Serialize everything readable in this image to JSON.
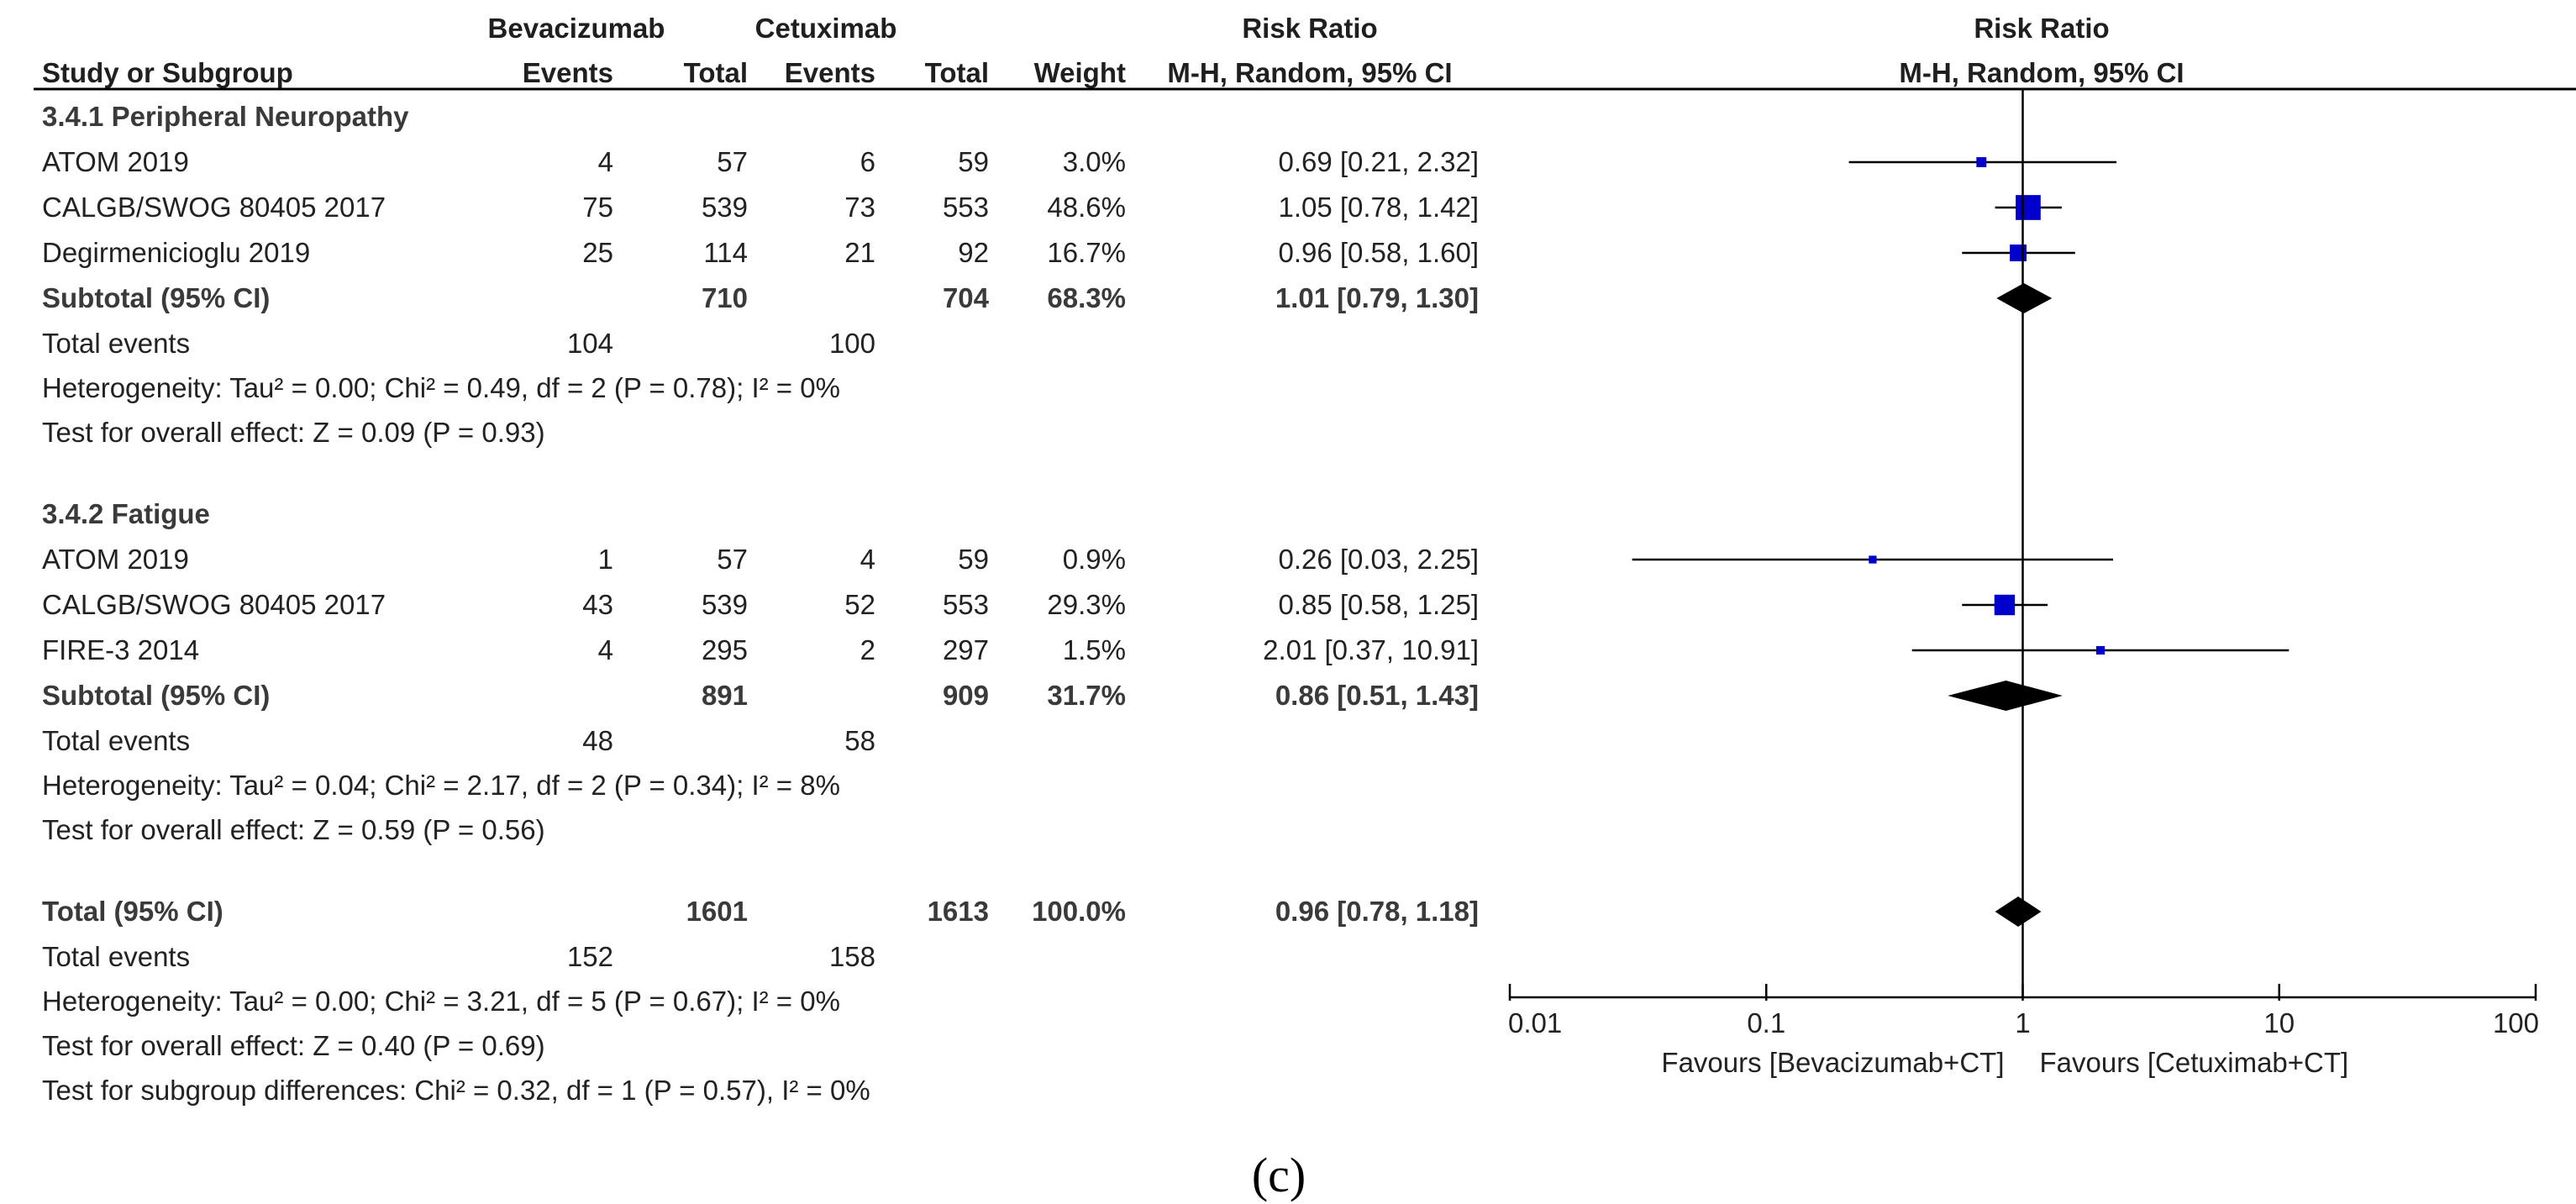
{
  "header": {
    "group1": "Bevacizumab",
    "group2": "Cetuximab",
    "rr_title": "Risk Ratio",
    "plot_title": "Risk Ratio",
    "col_study": "Study or Subgroup",
    "col_events1": "Events",
    "col_total1": "Total",
    "col_events2": "Events",
    "col_total2": "Total",
    "col_weight": "Weight",
    "col_method": "M-H, Random, 95% CI",
    "plot_method": "M-H, Random, 95% CI"
  },
  "colors": {
    "marker": "#0000cc",
    "diamond": "#000000"
  },
  "chart_data": {
    "type": "forest",
    "x_scale": "log",
    "xlim": [
      0.01,
      100
    ],
    "ticks": [
      {
        "value": 0.01,
        "label": "0.01"
      },
      {
        "value": 0.1,
        "label": "0.1"
      },
      {
        "value": 1,
        "label": "1"
      },
      {
        "value": 10,
        "label": "10"
      },
      {
        "value": 100,
        "label": "100"
      }
    ],
    "null_line": 1,
    "favours_left": "Favours [Bevacizumab+CT]",
    "favours_right": "Favours [Cetuximab+CT]",
    "subgroups": [
      {
        "title": "3.4.1 Peripheral Neuropathy",
        "studies": [
          {
            "name": "ATOM 2019",
            "e1": "4",
            "t1": "57",
            "e2": "6",
            "t2": "59",
            "weight": "3.0%",
            "ci_text": "0.69 [0.21, 2.32]",
            "rr": 0.69,
            "lo": 0.21,
            "hi": 2.32,
            "w": 3.0
          },
          {
            "name": "CALGB/SWOG 80405 2017",
            "e1": "75",
            "t1": "539",
            "e2": "73",
            "t2": "553",
            "weight": "48.6%",
            "ci_text": "1.05 [0.78, 1.42]",
            "rr": 1.05,
            "lo": 0.78,
            "hi": 1.42,
            "w": 48.6
          },
          {
            "name": "Degirmenicioglu 2019",
            "e1": "25",
            "t1": "114",
            "e2": "21",
            "t2": "92",
            "weight": "16.7%",
            "ci_text": "0.96 [0.58, 1.60]",
            "rr": 0.96,
            "lo": 0.58,
            "hi": 1.6,
            "w": 16.7
          }
        ],
        "subtotal": {
          "label": "Subtotal (95% CI)",
          "t1": "710",
          "t2": "704",
          "weight": "68.3%",
          "ci_text": "1.01 [0.79, 1.30]",
          "rr": 1.01,
          "lo": 0.79,
          "hi": 1.3
        },
        "total_events": {
          "label": "Total events",
          "e1": "104",
          "e2": "100"
        },
        "heterogeneity": "Heterogeneity: Tau² = 0.00; Chi² = 0.49, df = 2 (P = 0.78); I² = 0%",
        "overall": "Test for overall effect: Z = 0.09 (P = 0.93)"
      },
      {
        "title": "3.4.2 Fatigue",
        "studies": [
          {
            "name": "ATOM 2019",
            "e1": "1",
            "t1": "57",
            "e2": "4",
            "t2": "59",
            "weight": "0.9%",
            "ci_text": "0.26 [0.03, 2.25]",
            "rr": 0.26,
            "lo": 0.03,
            "hi": 2.25,
            "w": 0.9
          },
          {
            "name": "CALGB/SWOG 80405 2017",
            "e1": "43",
            "t1": "539",
            "e2": "52",
            "t2": "553",
            "weight": "29.3%",
            "ci_text": "0.85 [0.58, 1.25]",
            "rr": 0.85,
            "lo": 0.58,
            "hi": 1.25,
            "w": 29.3
          },
          {
            "name": "FIRE-3 2014",
            "e1": "4",
            "t1": "295",
            "e2": "2",
            "t2": "297",
            "weight": "1.5%",
            "ci_text": "2.01 [0.37, 10.91]",
            "rr": 2.01,
            "lo": 0.37,
            "hi": 10.91,
            "w": 1.5
          }
        ],
        "subtotal": {
          "label": "Subtotal (95% CI)",
          "t1": "891",
          "t2": "909",
          "weight": "31.7%",
          "ci_text": "0.86 [0.51, 1.43]",
          "rr": 0.86,
          "lo": 0.51,
          "hi": 1.43
        },
        "total_events": {
          "label": "Total events",
          "e1": "48",
          "e2": "58"
        },
        "heterogeneity": "Heterogeneity: Tau² = 0.04; Chi² = 2.17, df = 2 (P = 0.34); I² = 8%",
        "overall": "Test for overall effect: Z = 0.59 (P = 0.56)"
      }
    ],
    "total": {
      "label": "Total (95% CI)",
      "t1": "1601",
      "t2": "1613",
      "weight": "100.0%",
      "ci_text": "0.96 [0.78, 1.18]",
      "rr": 0.96,
      "lo": 0.78,
      "hi": 1.18,
      "events_label": "Total events",
      "e1": "152",
      "e2": "158",
      "heterogeneity": "Heterogeneity: Tau² = 0.00; Chi² = 3.21, df = 5 (P = 0.67); I² = 0%",
      "overall": "Test for overall effect: Z = 0.40 (P = 0.69)",
      "subgroup_diff": "Test for subgroup differences: Chi² = 0.32, df = 1 (P = 0.57), I² = 0%"
    }
  },
  "caption": "(c)"
}
